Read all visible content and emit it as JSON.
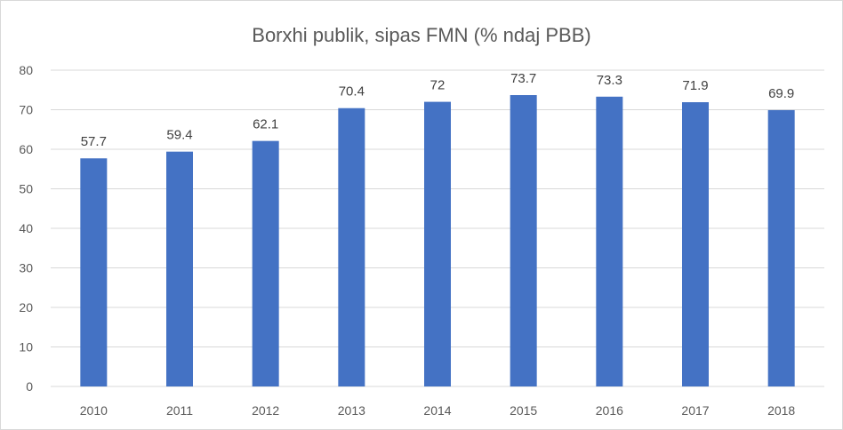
{
  "chart_data": {
    "type": "bar",
    "title": "Borxhi publik, sipas FMN (% ndaj PBB)",
    "xlabel": "",
    "ylabel": "",
    "categories": [
      "2010",
      "2011",
      "2012",
      "2013",
      "2014",
      "2015",
      "2016",
      "2017",
      "2018"
    ],
    "values": [
      57.7,
      59.4,
      62.1,
      70.4,
      72,
      73.7,
      73.3,
      71.9,
      69.9
    ],
    "data_labels": [
      "57.7",
      "59.4",
      "62.1",
      "70.4",
      "72",
      "73.7",
      "73.3",
      "71.9",
      "69.9"
    ],
    "ylim": [
      0,
      80
    ],
    "yticks": [
      0,
      10,
      20,
      30,
      40,
      50,
      60,
      70,
      80
    ],
    "grid": true,
    "legend": "none",
    "bar_color": "#4472c4"
  }
}
